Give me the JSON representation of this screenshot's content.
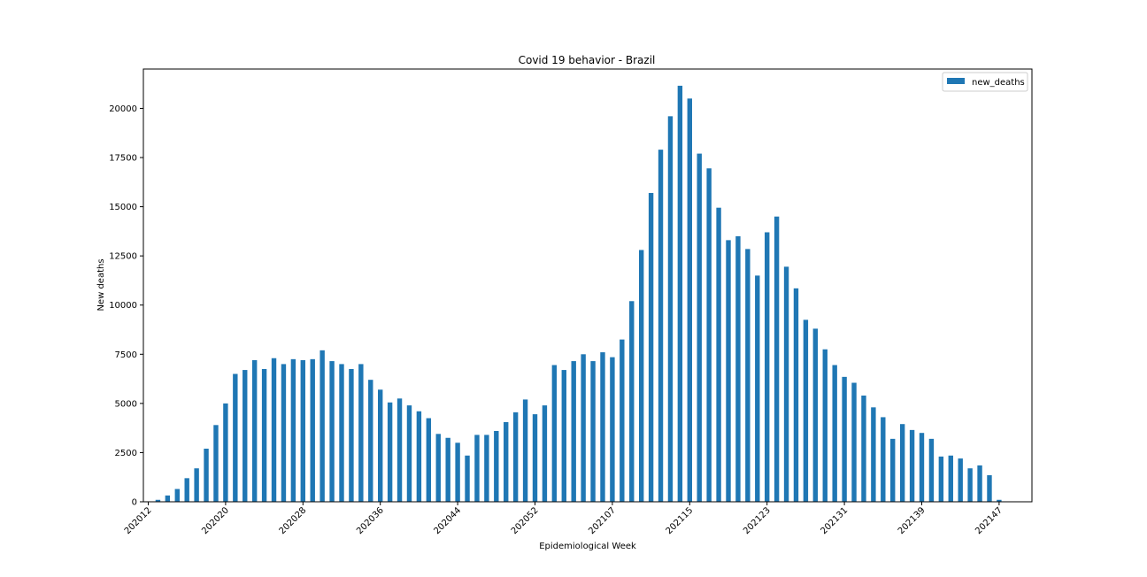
{
  "chart_data": {
    "type": "bar",
    "title": "Covid 19 behavior - Brazil",
    "xlabel": "Epidemiological Week",
    "ylabel": "New deaths",
    "ylim": [
      0,
      22000
    ],
    "yticks": [
      0,
      2500,
      5000,
      7500,
      10000,
      12500,
      15000,
      17500,
      20000
    ],
    "xtick_labels": [
      "202012",
      "202020",
      "202028",
      "202036",
      "202044",
      "202052",
      "202107",
      "202115",
      "202123",
      "202131",
      "202139",
      "202147"
    ],
    "grid": false,
    "legend": "top-right",
    "color": "#1f77b4",
    "series": [
      {
        "name": "new_deaths",
        "values": [
          20,
          100,
          320,
          650,
          1200,
          1700,
          2700,
          3900,
          5000,
          6500,
          6700,
          7200,
          6750,
          7300,
          7000,
          7250,
          7200,
          7250,
          7700,
          7150,
          7000,
          6750,
          7000,
          6200,
          5700,
          5050,
          5250,
          4900,
          4600,
          4250,
          3450,
          3250,
          3000,
          2350,
          3400,
          3400,
          3600,
          4050,
          4550,
          5200,
          4450,
          4900,
          6950,
          6700,
          7150,
          7500,
          7150,
          7600,
          7350,
          8250,
          10200,
          12800,
          15700,
          17900,
          19600,
          21150,
          20500,
          17700,
          16950,
          14950,
          13300,
          13500,
          12850,
          11500,
          13700,
          14500,
          11950,
          10850,
          9250,
          8800,
          7750,
          6950,
          6350,
          6050,
          5400,
          4800,
          4300,
          3200,
          3950,
          3650,
          3500,
          3200,
          2300,
          2350,
          2200,
          1700,
          1850,
          1350,
          100
        ]
      }
    ]
  }
}
